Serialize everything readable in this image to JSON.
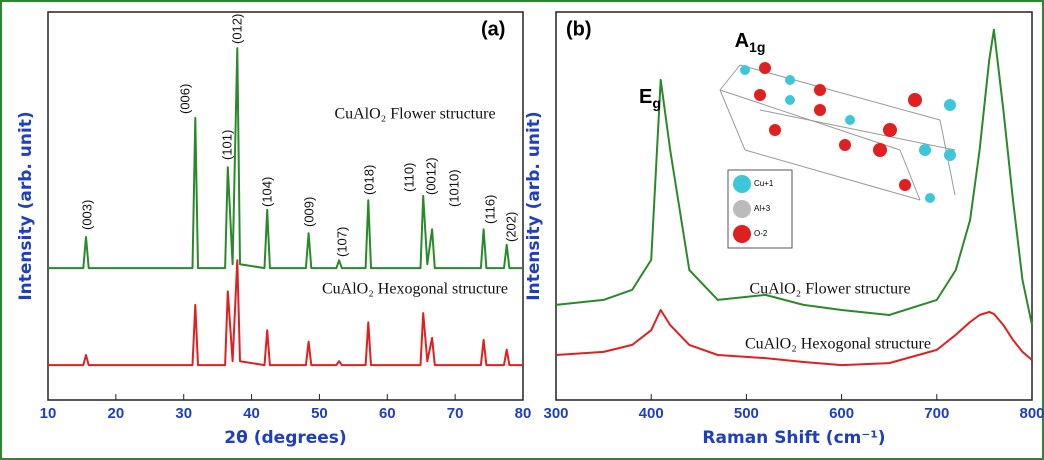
{
  "chart_data": [
    {
      "type": "line",
      "panel_label": "(a)",
      "x_label": "2θ (degrees)",
      "y_label": "Intensity (arb. unit)",
      "xlim": [
        10,
        80
      ],
      "xticks": [
        10,
        20,
        30,
        40,
        50,
        60,
        70,
        80
      ],
      "ylim": [
        0,
        100
      ],
      "x": [
        10,
        15.2,
        15.6,
        16.0,
        31.3,
        31.7,
        32.1,
        36.1,
        36.5,
        37.2,
        37.9,
        38.3,
        41.9,
        42.3,
        42.7,
        48.0,
        48.4,
        48.8,
        52.5,
        52.9,
        53.3,
        56.8,
        57.2,
        57.6,
        64.9,
        65.3,
        65.9,
        66.6,
        67.0,
        73.8,
        74.2,
        74.6,
        77.2,
        77.6,
        78.0,
        80
      ],
      "series": [
        {
          "name": "CuAlO₂ Flower structure",
          "color": "#2a8a2a",
          "values": [
            34,
            34,
            42,
            34,
            34,
            72.7,
            34,
            34,
            60,
            35,
            90.7,
            35,
            34,
            49,
            34,
            34,
            43,
            34,
            34,
            36,
            34,
            34,
            51.5,
            34,
            34,
            52.6,
            35,
            44,
            34,
            34,
            44,
            34,
            34,
            40,
            34,
            34
          ]
        },
        {
          "name": "CuAlO₂ Hexogonal structure",
          "color": "#e02020",
          "values": [
            9,
            9,
            11.6,
            9,
            9,
            24.5,
            9,
            9,
            28,
            10,
            36,
            10,
            9,
            18,
            9,
            9,
            15,
            9,
            9,
            10,
            9,
            9,
            20,
            9,
            9,
            22.4,
            10,
            16,
            9,
            9,
            15.5,
            9,
            9,
            13,
            9,
            9
          ]
        }
      ],
      "annotations": [
        "(003)",
        "(006)",
        "(101)",
        "(012)",
        "(104)",
        "(009)",
        "(107)",
        "(018)",
        "(110)",
        "(0012)",
        "(1010)",
        "(116)",
        "(202)"
      ]
    },
    {
      "type": "line",
      "panel_label": "(b)",
      "x_label": "Raman Shift (cm⁻¹)",
      "y_label": "Intensity (arb. unit)",
      "xlim": [
        300,
        800
      ],
      "xticks": [
        300,
        400,
        500,
        600,
        700,
        800
      ],
      "ylim": [
        0,
        100
      ],
      "x": [
        300,
        350,
        380,
        400,
        410,
        420,
        440,
        470,
        520,
        560,
        600,
        650,
        700,
        720,
        735,
        745,
        755,
        760,
        770,
        780,
        790,
        800
      ],
      "series": [
        {
          "name": "CuAlO₂ Flower structure",
          "color": "#2a8a2a",
          "values": [
            24.5,
            25.8,
            28.4,
            36.1,
            82.5,
            64.4,
            33.5,
            25.8,
            27.1,
            24.5,
            23.2,
            21.9,
            25.8,
            33.5,
            46.4,
            64.4,
            87.6,
            95.4,
            74.7,
            51.5,
            30.9,
            19.3
          ]
        },
        {
          "name": "CuAlO₂ Hexogonal structure",
          "color": "#e02020",
          "values": [
            11.6,
            12.4,
            14.2,
            18.0,
            23.2,
            19.3,
            14.2,
            11.6,
            10.8,
            9.8,
            9.0,
            9.5,
            12.9,
            16.8,
            20.1,
            21.9,
            22.7,
            22.2,
            19.3,
            15.5,
            12.4,
            10.3
          ]
        }
      ],
      "annotations": [
        {
          "text": "E",
          "sub": "g"
        },
        {
          "text": "A",
          "sub": "1g"
        }
      ],
      "inset_legend": [
        "Cu+1",
        "Al+3",
        "O-2"
      ]
    }
  ]
}
